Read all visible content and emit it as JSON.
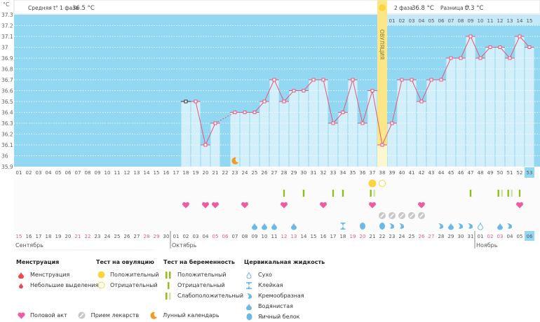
{
  "header": {
    "phase1_label": "Средняя t° 1 фаза",
    "phase1_value": "36.5 °C",
    "phase2_label": "2 фаза",
    "phase2_value": "36.8 °C",
    "diff_label": "Разница t°",
    "diff_value": "0.3 °C",
    "ovulation_label": "ОВУЛЯЦИЯ"
  },
  "colors": {
    "background": "#93d8f3",
    "bar": "#d3effa",
    "line": "#e8577a",
    "ovulation": "#fbe68a",
    "weekend": "#e8577a",
    "preg_test": "#8fbf1f",
    "preg_weak": "#cfe3a0",
    "fluid": "#6cb8e8",
    "heart": "#f25ba3",
    "pill": "#c8c8c8",
    "moon": "#f29a1f"
  },
  "chart_data": {
    "type": "line",
    "ylabel": "°C",
    "ylim": [
      35.9,
      37.3
    ],
    "y_ticks": [
      "35.9",
      "36",
      "36.1",
      "36.2",
      "36.3",
      "36.4",
      "36.5",
      "36.6",
      "36.7",
      "36.8",
      "36.9",
      "37",
      "37.1",
      "37.2",
      "37.3"
    ],
    "grid": true,
    "cycle_days": 53,
    "ovulation_day": 38,
    "current_day": 53,
    "temperatures": [
      {
        "day": 18,
        "t": 36.5
      },
      {
        "day": 19,
        "t": 36.5
      },
      {
        "day": 20,
        "t": 36.1
      },
      {
        "day": 21,
        "t": 36.3
      },
      {
        "day": 23,
        "t": 36.4
      },
      {
        "day": 24,
        "t": 36.4
      },
      {
        "day": 25,
        "t": 36.4
      },
      {
        "day": 26,
        "t": 36.5
      },
      {
        "day": 27,
        "t": 36.7
      },
      {
        "day": 28,
        "t": 36.5
      },
      {
        "day": 29,
        "t": 36.6
      },
      {
        "day": 30,
        "t": 36.6
      },
      {
        "day": 31,
        "t": 36.7
      },
      {
        "day": 32,
        "t": 36.7
      },
      {
        "day": 33,
        "t": 36.3
      },
      {
        "day": 34,
        "t": 36.4
      },
      {
        "day": 35,
        "t": 36.7
      },
      {
        "day": 36,
        "t": 36.3
      },
      {
        "day": 37,
        "t": 36.6
      },
      {
        "day": 38,
        "t": 36.1
      },
      {
        "day": 39,
        "t": 36.3
      },
      {
        "day": 40,
        "t": 36.7
      },
      {
        "day": 41,
        "t": 36.7
      },
      {
        "day": 42,
        "t": 36.5
      },
      {
        "day": 43,
        "t": 36.7
      },
      {
        "day": 44,
        "t": 36.7
      },
      {
        "day": 45,
        "t": 36.9
      },
      {
        "day": 46,
        "t": 36.9
      },
      {
        "day": 47,
        "t": 37.1
      },
      {
        "day": 48,
        "t": 36.9
      },
      {
        "day": 49,
        "t": 37.0
      },
      {
        "day": 50,
        "t": 37.0
      },
      {
        "day": 51,
        "t": 36.9
      },
      {
        "day": 52,
        "t": 37.1
      },
      {
        "day": 53,
        "t": 37.0
      }
    ],
    "dates": [
      "15",
      "16",
      "17",
      "18",
      "19",
      "20",
      "21",
      "22",
      "23",
      "24",
      "25",
      "26",
      "27",
      "28",
      "29",
      "30",
      "01",
      "02",
      "03",
      "04",
      "05",
      "06",
      "07",
      "08",
      "09",
      "10",
      "11",
      "12",
      "13",
      "14",
      "15",
      "16",
      "17",
      "18",
      "19",
      "20",
      "21",
      "22",
      "23",
      "24",
      "25",
      "26",
      "27",
      "28",
      "29",
      "30",
      "31",
      "01",
      "02",
      "03",
      "04",
      "05",
      "06"
    ],
    "weekend_days": [
      1,
      7,
      8,
      14,
      15,
      21,
      22,
      28,
      29,
      35,
      36,
      42,
      43,
      49,
      50
    ],
    "months": [
      {
        "label": "Сентябрь",
        "start_day": 1
      },
      {
        "label": "Октябрь",
        "start_day": 17
      },
      {
        "label": "Ноябрь",
        "start_day": 48
      }
    ],
    "ovulation_tests": [
      {
        "day": 37,
        "result": "positive"
      },
      {
        "day": 38,
        "result": "negative"
      }
    ],
    "pregnancy_tests": [
      {
        "day": 28,
        "result": "negative"
      },
      {
        "day": 30,
        "result": "negative"
      },
      {
        "day": 33,
        "result": "negative"
      },
      {
        "day": 34,
        "result": "negative"
      },
      {
        "day": 37,
        "result": "weak"
      },
      {
        "day": 47,
        "result": "negative"
      },
      {
        "day": 50,
        "result": "weak"
      },
      {
        "day": 51,
        "result": "weak"
      },
      {
        "day": 52,
        "result": "negative"
      }
    ],
    "intercourse_days": [
      18,
      20,
      21,
      24,
      28,
      32,
      37,
      42,
      52
    ],
    "medication_days": [
      38,
      39,
      40,
      41,
      42
    ],
    "moon_days": [
      23
    ],
    "cervical_fluid": [
      {
        "day": 25,
        "type": "watery"
      },
      {
        "day": 26,
        "type": "watery"
      },
      {
        "day": 27,
        "type": "watery"
      },
      {
        "day": 29,
        "type": "watery"
      },
      {
        "day": 34,
        "type": "sticky"
      },
      {
        "day": 36,
        "type": "eggwhite"
      },
      {
        "day": 38,
        "type": "eggwhite"
      },
      {
        "day": 39,
        "type": "creamy"
      },
      {
        "day": 40,
        "type": "creamy"
      },
      {
        "day": 44,
        "type": "creamy"
      },
      {
        "day": 45,
        "type": "watery"
      },
      {
        "day": 46,
        "type": "creamy"
      },
      {
        "day": 47,
        "type": "creamy"
      },
      {
        "day": 48,
        "type": "dry"
      },
      {
        "day": 50,
        "type": "watery"
      },
      {
        "day": 51,
        "type": "creamy"
      }
    ]
  },
  "legend": {
    "menstruation": {
      "title": "Менструация",
      "items": [
        "Менструация",
        "Небольшие выделения"
      ]
    },
    "ovulation_test": {
      "title": "Тест на овуляцию",
      "items": [
        "Положительный",
        "Отрицательный"
      ]
    },
    "pregnancy_test": {
      "title": "Тест на беременность",
      "items": [
        "Положительный",
        "Отрицательный",
        "Слабоположительный"
      ]
    },
    "cervical": {
      "title": "Цервикальная жидкость",
      "items": [
        "Сухо",
        "Клейкая",
        "Кремообразная",
        "Водянистая",
        "Яичный белок"
      ]
    },
    "other": [
      "Половой акт",
      "Прием лекарств",
      "Лунный календарь"
    ]
  }
}
